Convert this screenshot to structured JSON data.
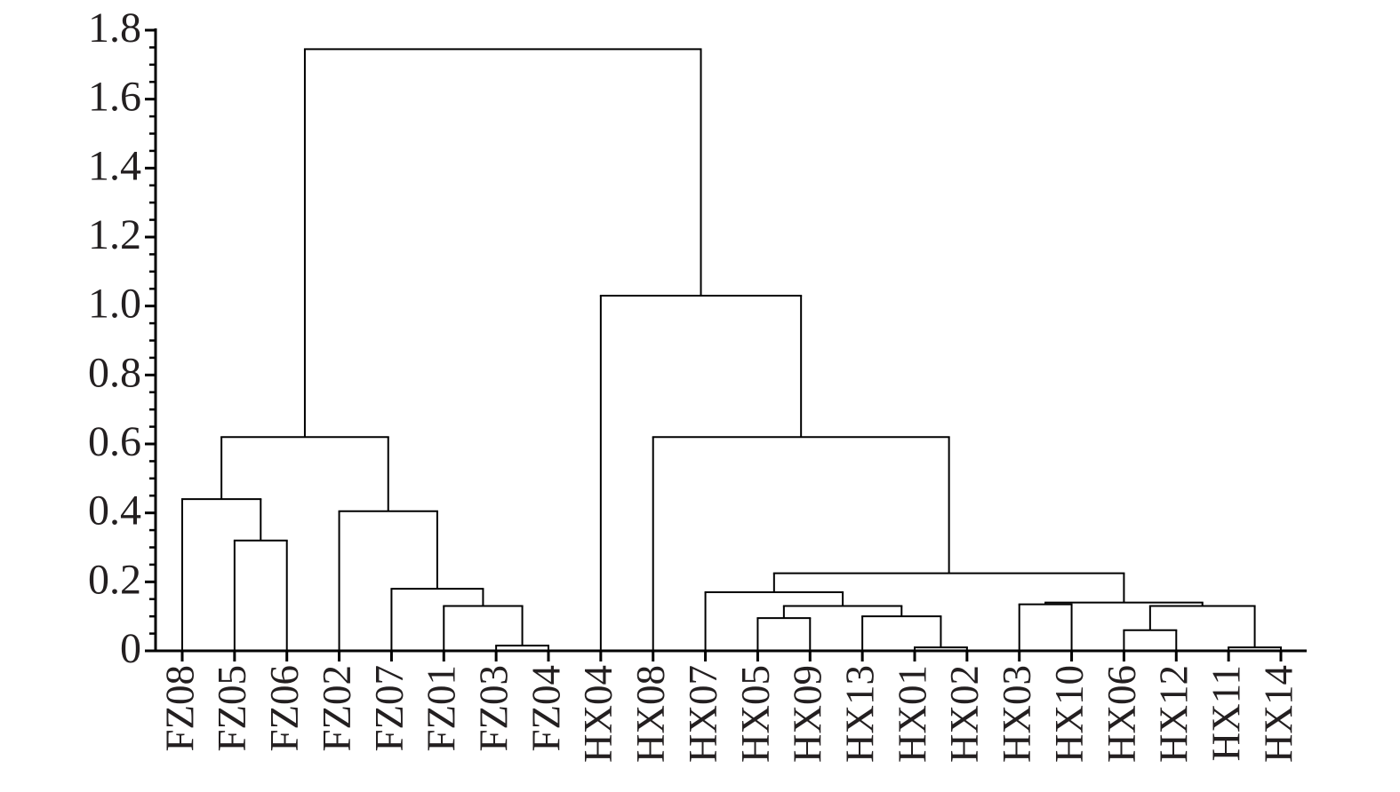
{
  "chart_data": {
    "type": "dendrogram",
    "ylim": [
      0,
      1.8
    ],
    "yticks": [
      0,
      0.2,
      0.4,
      0.6,
      0.8,
      {
        "value": 1,
        "label": "1.0"
      },
      1.2,
      1.4,
      1.6,
      1.8
    ],
    "yminorticks": [
      0.05,
      0.1,
      0.15,
      0.25,
      0.3,
      0.35,
      0.45,
      0.5,
      0.55,
      0.65,
      0.7,
      0.75,
      0.85,
      0.9,
      0.95,
      1.05,
      1.1,
      1.15,
      1.25,
      1.3,
      1.35,
      1.45,
      1.5,
      1.55,
      1.65,
      1.7,
      1.75
    ],
    "color": "#000000",
    "tree": {
      "height": 1.745,
      "children": [
        {
          "height": 0.62,
          "children": [
            {
              "height": 0.44,
              "children": [
                {
                  "label": "FZ08"
                },
                {
                  "height": 0.32,
                  "children": [
                    {
                      "label": "FZ05"
                    },
                    {
                      "label": "FZ06"
                    }
                  ]
                }
              ]
            },
            {
              "height": 0.405,
              "children": [
                {
                  "label": "FZ02"
                },
                {
                  "height": 0.18,
                  "children": [
                    {
                      "label": "FZ07"
                    },
                    {
                      "height": 0.13,
                      "children": [
                        {
                          "label": "FZ01"
                        },
                        {
                          "height": 0.015,
                          "children": [
                            {
                              "label": "FZ03"
                            },
                            {
                              "label": "FZ04"
                            }
                          ]
                        }
                      ]
                    }
                  ]
                }
              ]
            }
          ]
        },
        {
          "height": 1.03,
          "children": [
            {
              "label": "HX04"
            },
            {
              "height": 0.62,
              "children": [
                {
                  "label": "HX08"
                },
                {
                  "height": 0.225,
                  "children": [
                    {
                      "height": 0.17,
                      "children": [
                        {
                          "label": "HX07"
                        },
                        {
                          "height": 0.13,
                          "children": [
                            {
                              "height": 0.095,
                              "children": [
                                {
                                  "label": "HX05"
                                },
                                {
                                  "label": "HX09"
                                }
                              ]
                            },
                            {
                              "height": 0.1,
                              "children": [
                                {
                                  "label": "HX13"
                                },
                                {
                                  "height": 0.01,
                                  "children": [
                                    {
                                      "label": "HX01"
                                    },
                                    {
                                      "label": "HX02"
                                    }
                                  ]
                                }
                              ]
                            }
                          ]
                        }
                      ]
                    },
                    {
                      "height": 0.14,
                      "children": [
                        {
                          "height": 0.135,
                          "children": [
                            {
                              "label": "HX03"
                            },
                            {
                              "label": "HX10"
                            }
                          ]
                        },
                        {
                          "height": 0.13,
                          "children": [
                            {
                              "height": 0.06,
                              "children": [
                                {
                                  "label": "HX06"
                                },
                                {
                                  "label": "HX12"
                                }
                              ]
                            },
                            {
                              "height": 0.01,
                              "children": [
                                {
                                  "label": "HX11"
                                },
                                {
                                  "label": "HX14"
                                }
                              ]
                            }
                          ]
                        }
                      ]
                    }
                  ]
                }
              ]
            }
          ]
        }
      ]
    }
  }
}
